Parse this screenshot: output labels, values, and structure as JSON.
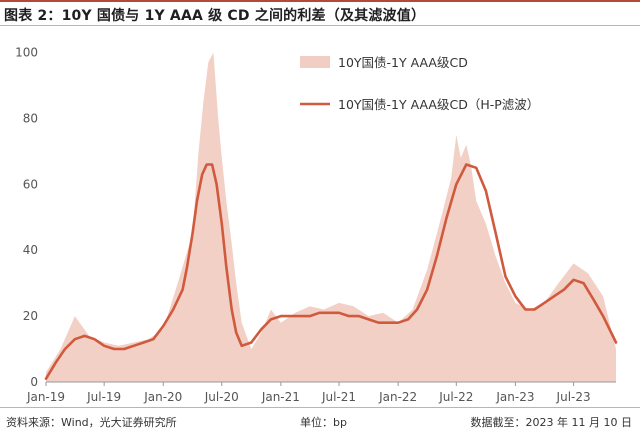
{
  "title": "图表 2：10Y 国债与 1Y AAA 级 CD 之间的利差（及其滤波值）",
  "footer": {
    "source": "资料来源：Wind，光大证券研究所",
    "unit": "单位：bp",
    "date": "数据截至：2023 年 11 月 10 日"
  },
  "colors": {
    "area": "#f2cdc3",
    "line": "#d05a3e",
    "frame": "#b24a3a"
  },
  "chart_data": {
    "type": "area",
    "ylim": [
      0,
      105
    ],
    "yticks": [
      0,
      20,
      40,
      60,
      80,
      100
    ],
    "xlim": [
      "2019-01-01",
      "2023-11-10"
    ],
    "xticks": [
      {
        "date": "2019-01-01",
        "label": "Jan-19"
      },
      {
        "date": "2019-07-01",
        "label": "Jul-19"
      },
      {
        "date": "2020-01-01",
        "label": "Jan-20"
      },
      {
        "date": "2020-07-01",
        "label": "Jul-20"
      },
      {
        "date": "2021-01-01",
        "label": "Jan-21"
      },
      {
        "date": "2021-07-01",
        "label": "Jul-21"
      },
      {
        "date": "2022-01-01",
        "label": "Jan-22"
      },
      {
        "date": "2022-07-01",
        "label": "Jul-22"
      },
      {
        "date": "2023-01-01",
        "label": "Jan-23"
      },
      {
        "date": "2023-07-01",
        "label": "Jul-23"
      }
    ],
    "legend_position": "top-right",
    "series": [
      {
        "name": "10Y国债-1Y AAA级CD",
        "style": "area",
        "x": [
          "2019-01-01",
          "2019-02-15",
          "2019-04-01",
          "2019-05-15",
          "2019-07-01",
          "2019-08-15",
          "2019-10-01",
          "2019-11-15",
          "2020-01-01",
          "2020-02-15",
          "2020-04-01",
          "2020-04-20",
          "2020-05-05",
          "2020-05-20",
          "2020-06-05",
          "2020-06-20",
          "2020-07-01",
          "2020-07-15",
          "2020-08-01",
          "2020-08-15",
          "2020-09-01",
          "2020-10-01",
          "2020-11-01",
          "2020-12-01",
          "2021-01-01",
          "2021-02-15",
          "2021-04-01",
          "2021-05-15",
          "2021-07-01",
          "2021-08-15",
          "2021-10-01",
          "2021-11-15",
          "2022-01-01",
          "2022-02-15",
          "2022-04-01",
          "2022-05-15",
          "2022-06-15",
          "2022-07-01",
          "2022-07-15",
          "2022-08-01",
          "2022-08-15",
          "2022-09-01",
          "2022-10-01",
          "2022-11-01",
          "2022-12-01",
          "2023-01-01",
          "2023-02-15",
          "2023-04-01",
          "2023-05-15",
          "2023-07-01",
          "2023-08-15",
          "2023-10-01",
          "2023-11-10"
        ],
        "y": [
          3,
          10,
          20,
          14,
          12,
          11,
          12,
          13,
          16,
          30,
          45,
          70,
          85,
          97,
          100,
          80,
          68,
          55,
          42,
          30,
          18,
          10,
          15,
          22,
          18,
          21,
          23,
          22,
          24,
          23,
          20,
          21,
          18,
          22,
          34,
          50,
          62,
          75,
          68,
          72,
          66,
          55,
          48,
          38,
          30,
          24,
          22,
          24,
          30,
          36,
          33,
          26,
          10
        ]
      },
      {
        "name": "10Y国债-1Y AAA级CD（H-P滤波）",
        "style": "line",
        "x": [
          "2019-01-01",
          "2019-02-01",
          "2019-03-01",
          "2019-04-01",
          "2019-05-01",
          "2019-06-01",
          "2019-07-01",
          "2019-08-01",
          "2019-09-01",
          "2019-10-01",
          "2019-11-01",
          "2019-12-01",
          "2020-01-01",
          "2020-02-01",
          "2020-03-01",
          "2020-03-15",
          "2020-04-01",
          "2020-04-15",
          "2020-05-01",
          "2020-05-15",
          "2020-06-01",
          "2020-06-15",
          "2020-07-01",
          "2020-07-15",
          "2020-08-01",
          "2020-08-15",
          "2020-09-01",
          "2020-10-01",
          "2020-11-01",
          "2020-12-01",
          "2021-01-01",
          "2021-02-01",
          "2021-03-01",
          "2021-04-01",
          "2021-05-01",
          "2021-06-01",
          "2021-07-01",
          "2021-08-01",
          "2021-09-01",
          "2021-10-01",
          "2021-11-01",
          "2021-12-01",
          "2022-01-01",
          "2022-02-01",
          "2022-03-01",
          "2022-04-01",
          "2022-05-01",
          "2022-06-01",
          "2022-07-01",
          "2022-08-01",
          "2022-09-01",
          "2022-10-01",
          "2022-11-01",
          "2022-12-01",
          "2023-01-01",
          "2023-02-01",
          "2023-03-01",
          "2023-04-01",
          "2023-05-01",
          "2023-06-01",
          "2023-07-01",
          "2023-08-01",
          "2023-09-01",
          "2023-10-01",
          "2023-11-10"
        ],
        "y": [
          1,
          6,
          10,
          13,
          14,
          13,
          11,
          10,
          10,
          11,
          12,
          13,
          17,
          22,
          28,
          35,
          45,
          55,
          63,
          66,
          66,
          60,
          48,
          35,
          22,
          15,
          11,
          12,
          16,
          19,
          20,
          20,
          20,
          20,
          21,
          21,
          21,
          20,
          20,
          19,
          18,
          18,
          18,
          19,
          22,
          28,
          38,
          50,
          60,
          66,
          65,
          58,
          45,
          32,
          26,
          22,
          22,
          24,
          26,
          28,
          31,
          30,
          25,
          20,
          12
        ]
      }
    ]
  }
}
